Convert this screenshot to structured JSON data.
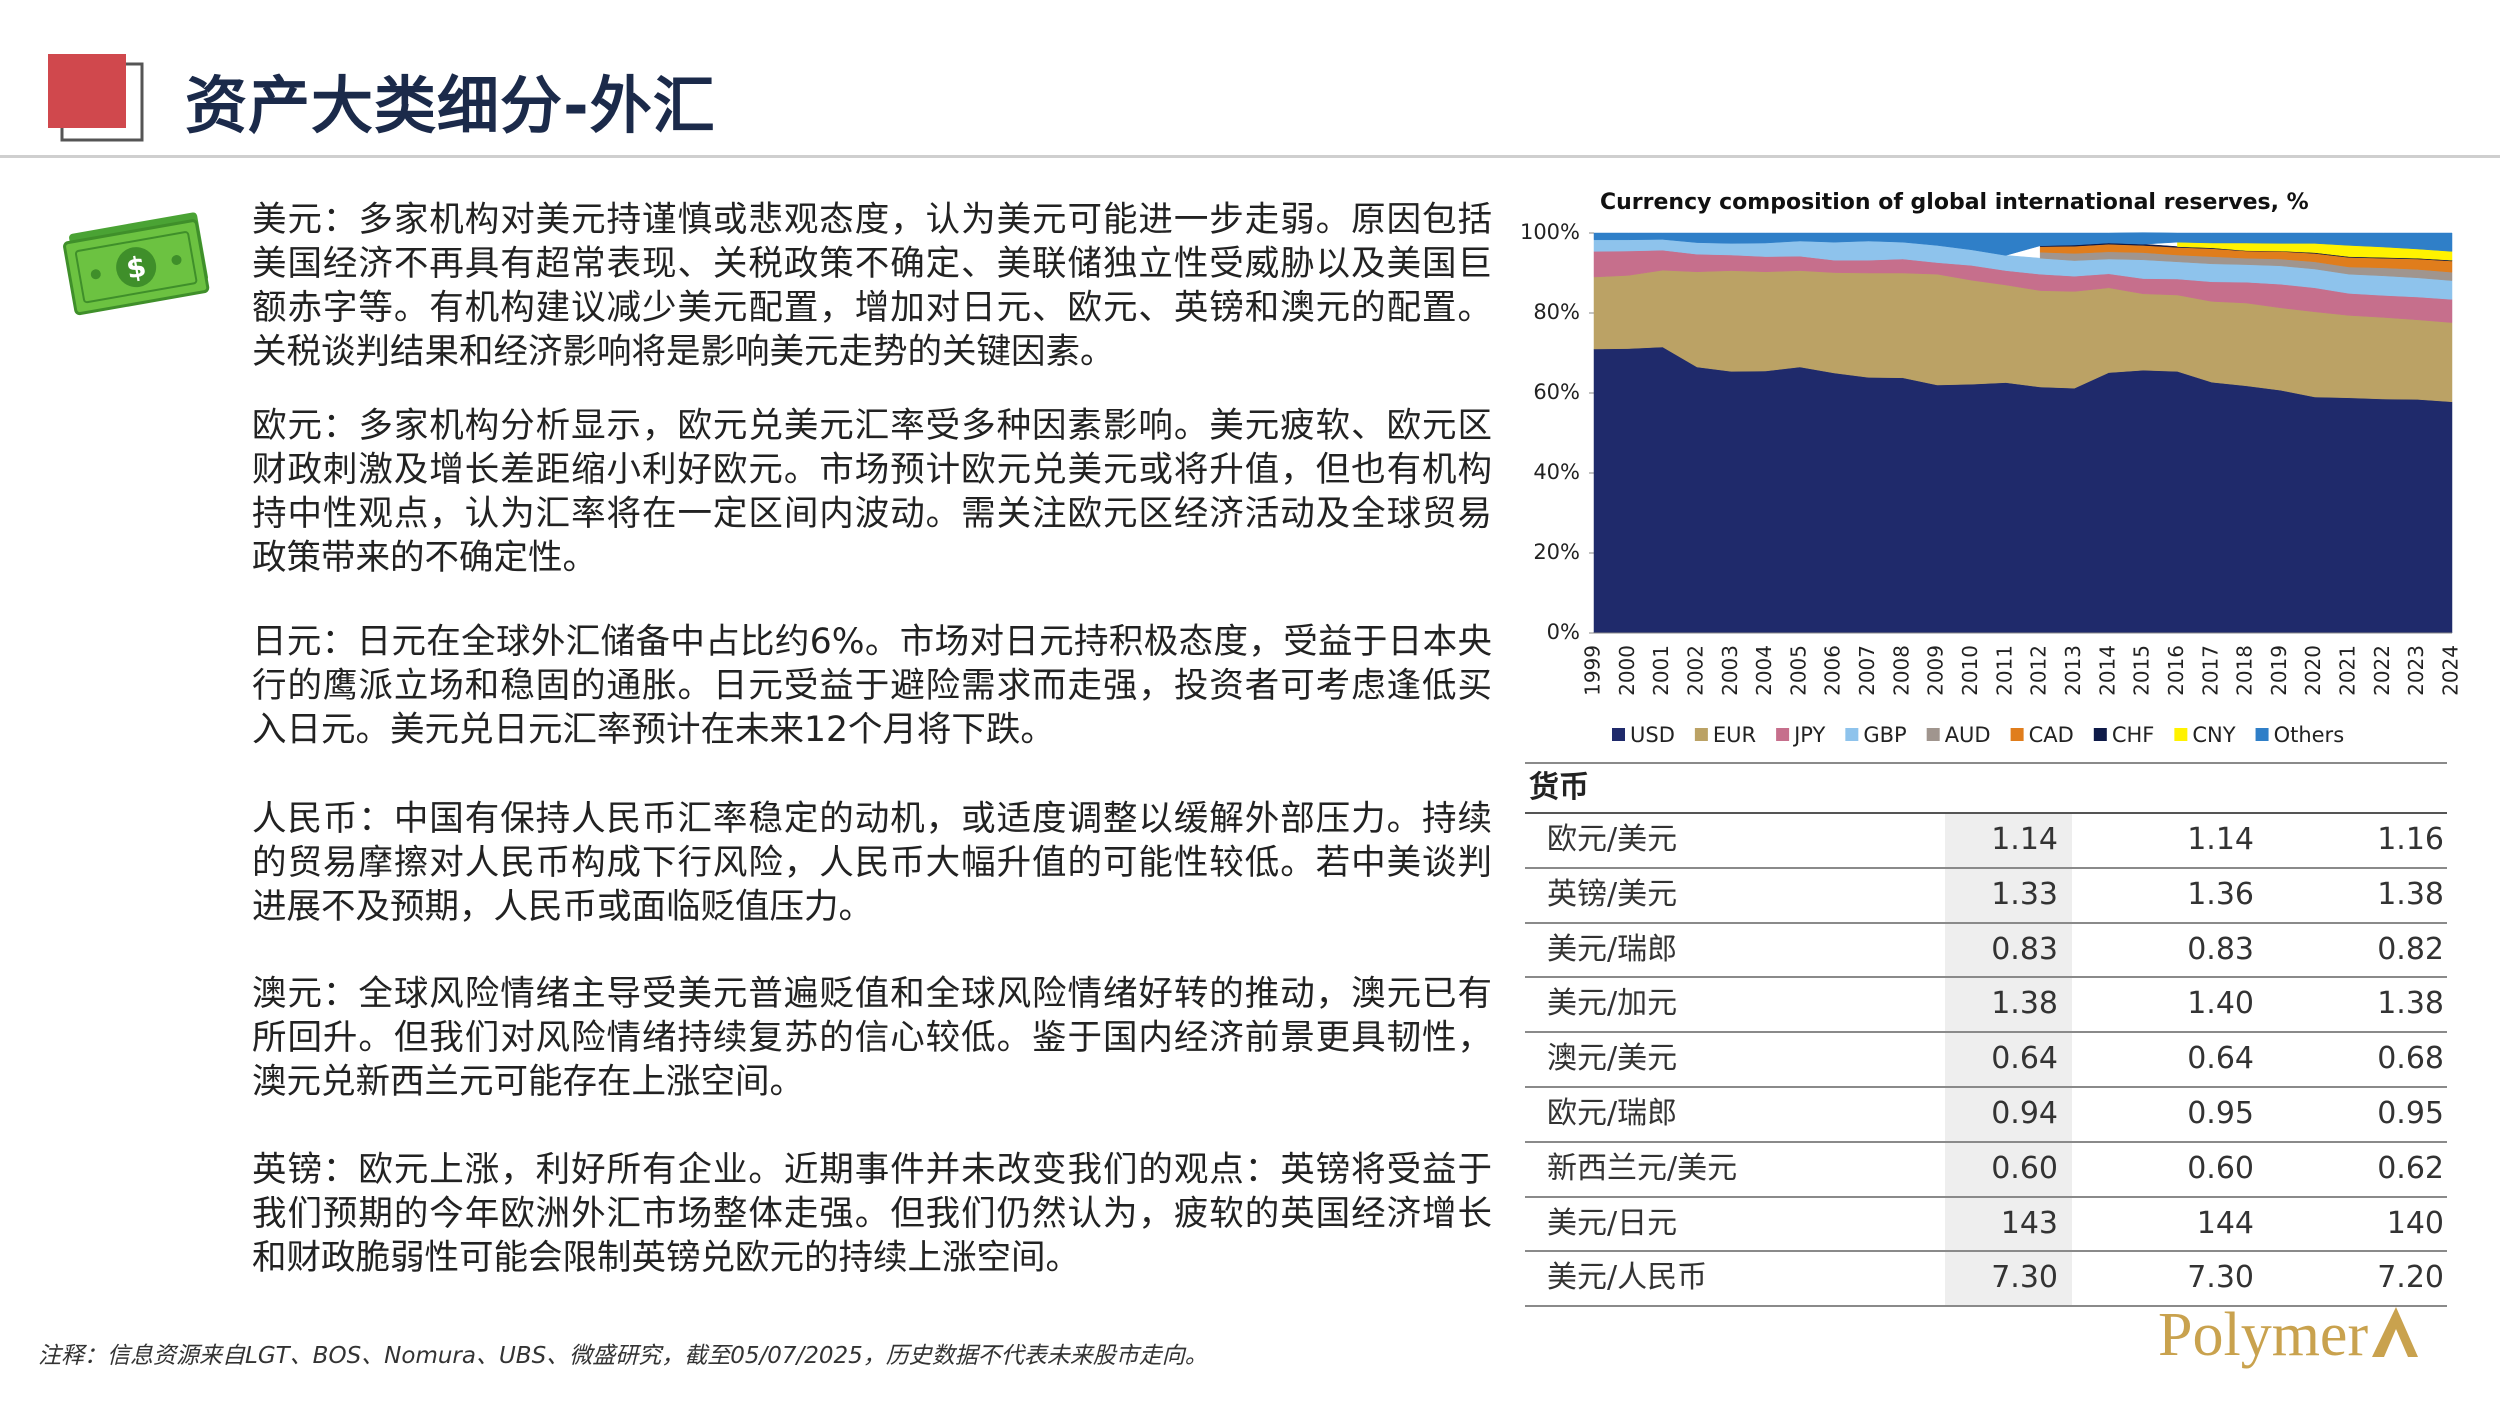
{
  "header": {
    "title": "资产大类细分-外汇"
  },
  "paragraphs": [
    "美元：多家机构对美元持谨慎或悲观态度，认为美元可能进一步走弱。原因包括美国经济不再具有超常表现、关税政策不确定、美联储独立性受威胁以及美国巨额赤字等。有机构建议减少美元配置，增加对日元、欧元、英镑和澳元的配置。关税谈判结果和经济影响将是影响美元走势的关键因素。",
    "欧元：多家机构分析显示，欧元兑美元汇率受多种因素影响。美元疲软、欧元区财政刺激及增长差距缩小利好欧元。市场预计欧元兑美元或将升值，但也有机构持中性观点，认为汇率将在一定区间内波动。需关注欧元区经济活动及全球贸易政策带来的不确定性。",
    "日元：日元在全球外汇储备中占比约6%。市场对日元持积极态度，受益于日本央行的鹰派立场和稳固的通胀。日元受益于避险需求而走强，投资者可考虑逢低买入日元。美元兑日元汇率预计在未来12个月将下跌。",
    "人民币：中国有保持人民币汇率稳定的动机，或适度调整以缓解外部压力。持续的贸易摩擦对人民币构成下行风险，人民币大幅升值的可能性较低。若中美谈判进展不及预期，人民币或面临贬值压力。",
    "澳元：全球风险情绪主导受美元普遍贬值和全球风险情绪好转的推动，澳元已有所回升。但我们对风险情绪持续复苏的信心较低。鉴于国内经济前景更具韧性，澳元兑新西兰元可能存在上涨空间。",
    "英镑：欧元上涨，利好所有企业。近期事件并未改变我们的观点：英镑将受益于我们预期的今年欧洲外汇市场整体走强。但我们仍然认为，疲软的英国经济增长和财政脆弱性可能会限制英镑兑欧元的持续上涨空间。"
  ],
  "chart_data": {
    "type": "stacked-area",
    "title": "Currency composition of global international reserves, %",
    "categories": [
      "1999",
      "2000",
      "2001",
      "2002",
      "2003",
      "2004",
      "2005",
      "2006",
      "2007",
      "2008",
      "2009",
      "2010",
      "2011",
      "2012",
      "2013",
      "2014",
      "2015",
      "2016",
      "2017",
      "2018",
      "2019",
      "2020",
      "2021",
      "2022",
      "2023",
      "2024"
    ],
    "ylim": [
      0,
      100
    ],
    "yticks": [
      {
        "value": 0,
        "label": "0%"
      },
      {
        "value": 20,
        "label": "20%"
      },
      {
        "value": 40,
        "label": "40%"
      },
      {
        "value": 60,
        "label": "60%"
      },
      {
        "value": 80,
        "label": "80%"
      },
      {
        "value": 100,
        "label": "100%"
      }
    ],
    "series": [
      {
        "name": "USD",
        "color": "#1f2a6b",
        "values": [
          71,
          71.1,
          71.5,
          66.5,
          65.4,
          65.5,
          66.5,
          65,
          63.9,
          63.8,
          62,
          62.2,
          62.6,
          61.5,
          61.2,
          65.1,
          65.7,
          65.4,
          62.7,
          61.8,
          60.7,
          59,
          58.8,
          58.5,
          58.4,
          57.8
        ]
      },
      {
        "name": "EUR",
        "color": "#bba265",
        "values": [
          18,
          18.3,
          19.2,
          23.8,
          25.2,
          24.8,
          24.1,
          25.1,
          26.1,
          26.2,
          27.7,
          26,
          24.4,
          24.1,
          24.2,
          21.2,
          19.1,
          19.1,
          20.2,
          20.7,
          20.6,
          21.3,
          20.6,
          20.4,
          19.9,
          19.8
        ]
      },
      {
        "name": "JPY",
        "color": "#c66f8c",
        "values": [
          6.4,
          6.1,
          5,
          4.4,
          3.9,
          3.8,
          3.6,
          3.1,
          3.2,
          3.5,
          2.9,
          3.7,
          3.6,
          4.1,
          3.8,
          3.5,
          3.8,
          4,
          4.9,
          5.2,
          5.9,
          6,
          5.5,
          5.5,
          5.7,
          5.8
        ]
      },
      {
        "name": "GBP",
        "color": "#8ec3ec",
        "values": [
          2.9,
          2.8,
          2.7,
          2.9,
          2.9,
          3.4,
          3.8,
          4.5,
          4.8,
          4.2,
          4.3,
          3.9,
          3.8,
          4,
          3.9,
          3.7,
          4.7,
          4.3,
          4.5,
          4.4,
          4.6,
          4.7,
          4.8,
          4.9,
          4.8,
          4.7
        ]
      },
      {
        "name": "AUD",
        "color": "#a0958e",
        "values": [
          null,
          null,
          null,
          null,
          null,
          null,
          null,
          null,
          null,
          null,
          null,
          null,
          null,
          1.5,
          1.8,
          1.8,
          1.8,
          1.7,
          1.8,
          1.6,
          1.7,
          1.8,
          1.8,
          2,
          2.1,
          2.1
        ]
      },
      {
        "name": "CAD",
        "color": "#e07d1c",
        "values": [
          null,
          null,
          null,
          null,
          null,
          null,
          null,
          null,
          null,
          null,
          null,
          null,
          null,
          1.4,
          1.8,
          1.9,
          1.8,
          1.9,
          2,
          1.8,
          1.9,
          2.1,
          2.4,
          2.4,
          2.6,
          2.8
        ]
      },
      {
        "name": "CHF",
        "color": "#0e1a48",
        "values": [
          null,
          null,
          null,
          null,
          null,
          null,
          null,
          null,
          null,
          null,
          null,
          null,
          null,
          0.2,
          0.3,
          0.3,
          0.3,
          0.2,
          0.2,
          0.1,
          0.1,
          0.2,
          0.2,
          0.2,
          0.2,
          0.2
        ]
      },
      {
        "name": "CNY",
        "color": "#fff200",
        "values": [
          null,
          null,
          null,
          null,
          null,
          null,
          null,
          null,
          null,
          null,
          null,
          null,
          null,
          null,
          null,
          null,
          null,
          1.1,
          1.2,
          1.9,
          1.9,
          2.3,
          2.8,
          2.6,
          2.3,
          2.2
        ]
      },
      {
        "name": "Others",
        "color": "#2f7fc8",
        "values": [
          1.7,
          1.7,
          1.6,
          2.4,
          2.6,
          2.5,
          2,
          2.3,
          2,
          2.3,
          3.1,
          4.2,
          5.6,
          3.2,
          3,
          2.5,
          2.9,
          2.3,
          2.5,
          2.5,
          2.6,
          2.6,
          3.1,
          3.5,
          4,
          4.6
        ]
      }
    ]
  },
  "table": {
    "header": "货币",
    "rows": [
      [
        "欧元/美元",
        "1.14",
        "1.14",
        "1.16"
      ],
      [
        "英镑/美元",
        "1.33",
        "1.36",
        "1.38"
      ],
      [
        "美元/瑞郎",
        "0.83",
        "0.83",
        "0.82"
      ],
      [
        "美元/加元",
        "1.38",
        "1.40",
        "1.38"
      ],
      [
        "澳元/美元",
        "0.64",
        "0.64",
        "0.68"
      ],
      [
        "欧元/瑞郎",
        "0.94",
        "0.95",
        "0.95"
      ],
      [
        "新西兰元/美元",
        "0.60",
        "0.60",
        "0.62"
      ],
      [
        "美元/日元",
        "143",
        "144",
        "140"
      ],
      [
        "美元/人民币",
        "7.30",
        "7.30",
        "7.20"
      ]
    ]
  },
  "footnote": "注释：信息资源来自LGT、BOS、Nomura、UBS、微盛研究，截至05/07/2025，历史数据不代表未来股市走向。",
  "logo": "Polymer"
}
